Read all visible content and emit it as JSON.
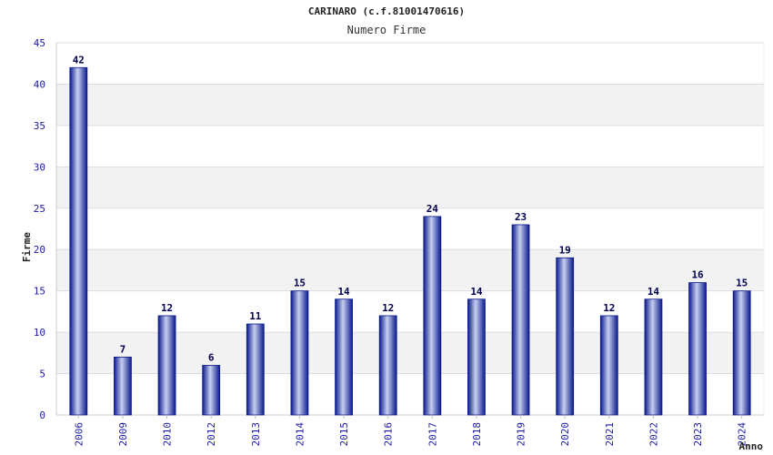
{
  "chart_data": {
    "type": "bar",
    "title": "CARINARO (c.f.81001470616)",
    "subtitle": "Numero Firme",
    "xlabel": "Anno",
    "ylabel": "Firme",
    "ylim": [
      0,
      45
    ],
    "yticks": [
      0,
      5,
      10,
      15,
      20,
      25,
      30,
      35,
      40,
      45
    ],
    "grid": true,
    "categories": [
      "2006",
      "2009",
      "2010",
      "2012",
      "2013",
      "2014",
      "2015",
      "2016",
      "2017",
      "2018",
      "2019",
      "2020",
      "2021",
      "2022",
      "2023",
      "2024"
    ],
    "series": [
      {
        "values": [
          42,
          7,
          12,
          6,
          11,
          15,
          14,
          12,
          24,
          14,
          23,
          19,
          12,
          14,
          16,
          15
        ]
      }
    ],
    "colors": {
      "bar_edge": "#0a1a8c",
      "bar_highlight": "#c8cff0",
      "band": "#f2f2f2",
      "tick_text": "#1a1aa6"
    }
  }
}
